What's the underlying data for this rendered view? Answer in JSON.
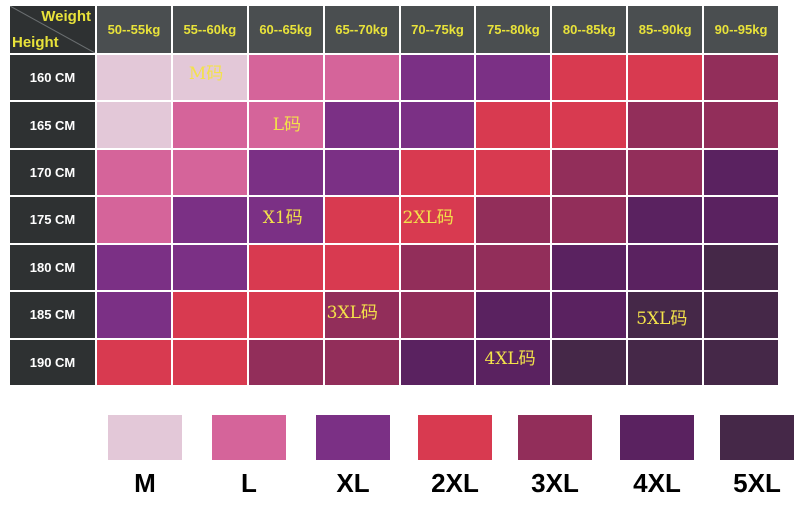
{
  "header": {
    "weight_label": "Weight",
    "height_label": "Height"
  },
  "colors": {
    "M": "#e3c8d8",
    "L": "#d5649a",
    "XL": "#7b3085",
    "2XL": "#d83a50",
    "3XL": "#922e5a",
    "4XL": "#5a2260",
    "5XL": "#452848"
  },
  "columns": [
    "50--55kg",
    "55--60kg",
    "60--65kg",
    "65--70kg",
    "70--75kg",
    "75--80kg",
    "80--85kg",
    "85--90kg",
    "90--95kg"
  ],
  "rows": [
    {
      "height": "160 CM",
      "sizes": [
        "M",
        "M",
        "L",
        "L",
        "XL",
        "XL",
        "2XL",
        "2XL",
        "3XL"
      ]
    },
    {
      "height": "165 CM",
      "sizes": [
        "M",
        "L",
        "L",
        "XL",
        "XL",
        "2XL",
        "2XL",
        "3XL",
        "3XL"
      ]
    },
    {
      "height": "170 CM",
      "sizes": [
        "L",
        "L",
        "XL",
        "XL",
        "2XL",
        "2XL",
        "3XL",
        "3XL",
        "4XL"
      ]
    },
    {
      "height": "175 CM",
      "sizes": [
        "L",
        "XL",
        "XL",
        "2XL",
        "2XL",
        "3XL",
        "3XL",
        "4XL",
        "4XL"
      ]
    },
    {
      "height": "180 CM",
      "sizes": [
        "XL",
        "XL",
        "2XL",
        "2XL",
        "3XL",
        "3XL",
        "4XL",
        "4XL",
        "5XL"
      ]
    },
    {
      "height": "185 CM",
      "sizes": [
        "XL",
        "2XL",
        "2XL",
        "3XL",
        "3XL",
        "4XL",
        "4XL",
        "5XL",
        "5XL"
      ]
    },
    {
      "height": "190 CM",
      "sizes": [
        "2XL",
        "2XL",
        "3XL",
        "3XL",
        "4XL",
        "4XL",
        "5XL",
        "5XL",
        "5XL"
      ]
    }
  ],
  "region_labels": [
    {
      "text": "M码",
      "row": 0,
      "col": 1
    },
    {
      "text": "L码",
      "row": 1,
      "col": 2
    },
    {
      "text": "X1码",
      "row": 3,
      "col": 2
    },
    {
      "text": "2XL码",
      "row": 3,
      "col": 4
    },
    {
      "text": "3XL码",
      "row": 5,
      "col": 3
    },
    {
      "text": "5XL码",
      "row": 5,
      "col": 7
    },
    {
      "text": "4XL码",
      "row": 6,
      "col": 5
    }
  ],
  "legend": [
    "M",
    "L",
    "XL",
    "2XL",
    "3XL",
    "4XL",
    "5XL"
  ]
}
